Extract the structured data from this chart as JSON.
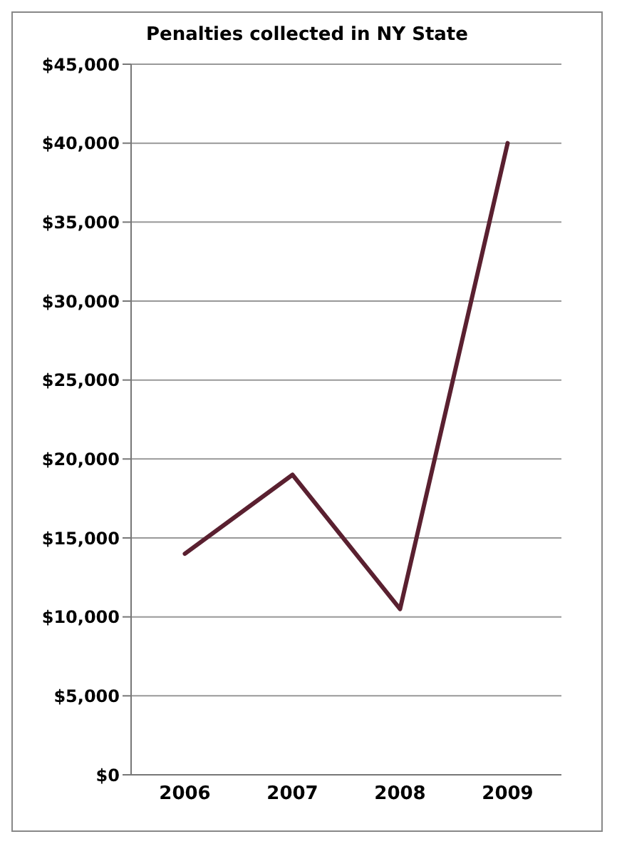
{
  "chart_data": {
    "type": "line",
    "title": "Penalties collected in NY State",
    "categories": [
      "2006",
      "2007",
      "2008",
      "2009"
    ],
    "series": [
      {
        "color": "#5a2030",
        "values": [
          14000,
          19000,
          10500,
          40000
        ]
      }
    ],
    "ylim": [
      0,
      45000
    ],
    "yticks": [
      {
        "value": 0,
        "label": "$0"
      },
      {
        "value": 5000,
        "label": "$5,000"
      },
      {
        "value": 10000,
        "label": "$10,000"
      },
      {
        "value": 15000,
        "label": "$15,000"
      },
      {
        "value": 20000,
        "label": "$20,000"
      },
      {
        "value": 25000,
        "label": "$25,000"
      },
      {
        "value": 30000,
        "label": "$30,000"
      },
      {
        "value": 35000,
        "label": "$35,000"
      },
      {
        "value": 40000,
        "label": "$40,000"
      },
      {
        "value": 45000,
        "label": "$45,000"
      }
    ],
    "grid": "y",
    "marker": "none",
    "line_style": "solid"
  }
}
